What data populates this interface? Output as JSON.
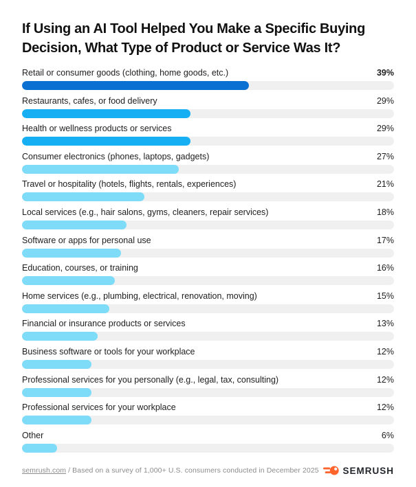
{
  "page": {
    "title": "If Using an AI Tool Helped You Make a Specific Buying Decision, What Type of Product or Service Was It?",
    "title_lines": [
      "If Using an AI Tool Helped You Make a Specific Buying",
      "Decision, What Type of Product or Service Was It?"
    ]
  },
  "chart_data": {
    "type": "bar",
    "orientation": "horizontal",
    "title": "If Using an AI Tool Helped You Make a Specific Buying Decision, What Type of Product or Service Was It?",
    "xlabel": "",
    "ylabel": "",
    "unit": "%",
    "xlim": [
      0,
      64
    ],
    "grid": false,
    "value_labels": "right-aligned",
    "palette": {
      "bar_dark_blue": "#0a71d3",
      "bar_mid_blue": "#17aff4",
      "bar_light_blue": "#7edcf9",
      "track_gray": "#f0f0f0"
    },
    "categories": [
      "Retail or consumer goods (clothing, home goods, etc.)",
      "Restaurants, cafes, or food delivery",
      "Health or wellness products or services",
      "Consumer electronics (phones, laptops, gadgets)",
      "Travel or hospitality (hotels, flights, rentals, experiences)",
      "Local services (e.g., hair salons, gyms, cleaners, repair services)",
      "Software or apps for personal use",
      "Education, courses, or training",
      "Home services (e.g., plumbing, electrical, renovation, moving)",
      "Financial or insurance products or services",
      "Business software or tools for your workplace",
      "Professional services for you personally (e.g., legal, tax, consulting)",
      "Professional services for your workplace",
      "Other"
    ],
    "values": [
      39,
      29,
      29,
      27,
      21,
      18,
      17,
      16,
      15,
      13,
      12,
      12,
      12,
      6
    ],
    "rows": [
      {
        "label": "Retail or consumer goods (clothing, home goods, etc.)",
        "value": 39,
        "display": "39%",
        "color": "#0a71d3",
        "emphasis": true
      },
      {
        "label": "Restaurants, cafes, or food delivery",
        "value": 29,
        "display": "29%",
        "color": "#17aff4",
        "emphasis": false
      },
      {
        "label": "Health or wellness products or services",
        "value": 29,
        "display": "29%",
        "color": "#17aff4",
        "emphasis": false
      },
      {
        "label": "Consumer electronics (phones, laptops, gadgets)",
        "value": 27,
        "display": "27%",
        "color": "#7edcf9",
        "emphasis": false
      },
      {
        "label": "Travel or hospitality (hotels, flights, rentals, experiences)",
        "value": 21,
        "display": "21%",
        "color": "#7edcf9",
        "emphasis": false
      },
      {
        "label": "Local services (e.g., hair salons, gyms, cleaners, repair services)",
        "value": 18,
        "display": "18%",
        "color": "#7edcf9",
        "emphasis": false
      },
      {
        "label": "Software or apps for personal use",
        "value": 17,
        "display": "17%",
        "color": "#7edcf9",
        "emphasis": false
      },
      {
        "label": "Education, courses, or training",
        "value": 16,
        "display": "16%",
        "color": "#7edcf9",
        "emphasis": false
      },
      {
        "label": "Home services (e.g., plumbing, electrical, renovation, moving)",
        "value": 15,
        "display": "15%",
        "color": "#7edcf9",
        "emphasis": false
      },
      {
        "label": "Financial or insurance products or services",
        "value": 13,
        "display": "13%",
        "color": "#7edcf9",
        "emphasis": false
      },
      {
        "label": "Business software or tools for your workplace",
        "value": 12,
        "display": "12%",
        "color": "#7edcf9",
        "emphasis": false
      },
      {
        "label": "Professional services for you personally (e.g., legal, tax, consulting)",
        "value": 12,
        "display": "12%",
        "color": "#7edcf9",
        "emphasis": false
      },
      {
        "label": "Professional services for your workplace",
        "value": 12,
        "display": "12%",
        "color": "#7edcf9",
        "emphasis": false
      },
      {
        "label": "Other",
        "value": 6,
        "display": "6%",
        "color": "#7edcf9",
        "emphasis": false
      }
    ]
  },
  "footer": {
    "source_link": "semrush.com",
    "note": " / Based on a survey of 1,000+ U.S. consumers conducted in December 2025",
    "brand": "SEMRUSH",
    "brand_color": "#ff642d"
  }
}
